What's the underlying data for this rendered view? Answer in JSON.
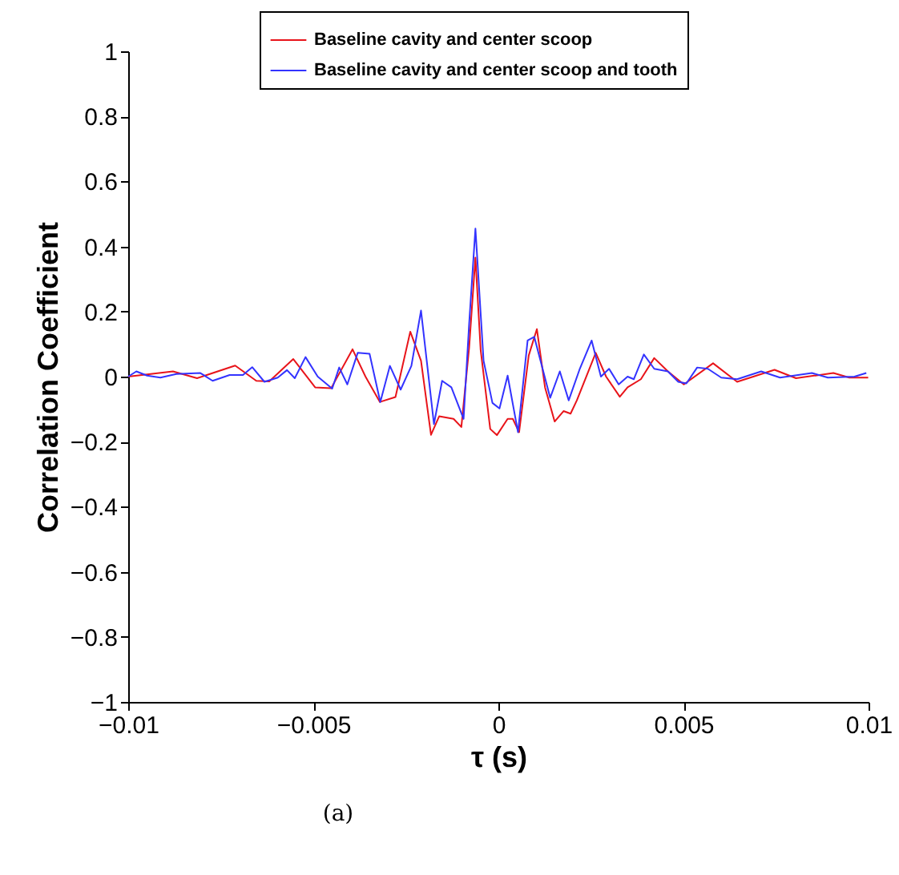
{
  "chart_data": {
    "type": "line",
    "xlabel": "τ (s)",
    "ylabel": "Correlation Coefficient",
    "annotations": [
      "(a)"
    ],
    "xlim": [
      -0.01,
      0.01
    ],
    "xticks": [
      -0.01,
      -0.005,
      0,
      0.005,
      0.01
    ],
    "ylim": [
      -1,
      1
    ],
    "yticks": [
      -1,
      -0.8,
      -0.6,
      -0.4,
      -0.2,
      0,
      0.2,
      0.4,
      0.6,
      0.8,
      1
    ],
    "grid": false,
    "legend": "top right",
    "marker": "none",
    "line_style": "solid",
    "series": [
      {
        "name": "Baseline cavity and center scoop",
        "color": "#e8141a",
        "x": [
          -0.01,
          -0.00879,
          -0.00814,
          -0.00711,
          -0.00654,
          -0.00619,
          -0.00554,
          -0.00495,
          -0.00452,
          -0.00394,
          -0.00359,
          -0.0032,
          -0.00278,
          -0.00238,
          -0.00209,
          -0.00182,
          -0.0016,
          -0.00121,
          -0.001,
          -0.00079,
          -0.00062,
          -0.00048,
          -0.00022,
          -4e-05,
          0.00025,
          0.00039,
          0.00056,
          0.00082,
          0.00104,
          0.00126,
          0.00152,
          0.00176,
          0.00195,
          0.00212,
          0.00263,
          0.00291,
          0.00328,
          0.00349,
          0.00385,
          0.00421,
          0.00458,
          0.00501,
          0.0058,
          0.00645,
          0.00746,
          0.00804,
          0.00905,
          0.00948,
          0.00999
        ],
        "values": [
          0,
          0.016,
          -0.005,
          0.034,
          -0.013,
          -0.015,
          0.054,
          -0.033,
          -0.036,
          0.084,
          0,
          -0.078,
          -0.063,
          0.138,
          0.049,
          -0.179,
          -0.122,
          -0.13,
          -0.155,
          0.089,
          0.366,
          0.083,
          -0.161,
          -0.18,
          -0.13,
          -0.13,
          -0.171,
          0.065,
          0.146,
          -0.033,
          -0.138,
          -0.106,
          -0.114,
          -0.073,
          0.073,
          0,
          -0.062,
          -0.033,
          -0.008,
          0.057,
          0.016,
          -0.024,
          0.041,
          -0.016,
          0.021,
          -0.005,
          0.011,
          -0.003,
          -0.003
        ]
      },
      {
        "name": "Baseline cavity and center scoop and tooth",
        "color": "#3333ff",
        "x": [
          -0.01,
          -0.00978,
          -0.00949,
          -0.00913,
          -0.0087,
          -0.00805,
          -0.00772,
          -0.00726,
          -0.0069,
          -0.00665,
          -0.00632,
          -0.00596,
          -0.00571,
          -0.0055,
          -0.00521,
          -0.00488,
          -0.00449,
          -0.0043,
          -0.00408,
          -0.0038,
          -0.00348,
          -0.00319,
          -0.00293,
          -0.00264,
          -0.00235,
          -0.00209,
          -0.00174,
          -0.00152,
          -0.00127,
          -0.00094,
          -0.00079,
          -0.00062,
          -0.0004,
          -0.00016,
          3e-05,
          0.00025,
          0.00053,
          0.00079,
          0.00097,
          0.0014,
          0.00166,
          0.0019,
          0.00219,
          0.00252,
          0.00277,
          0.00299,
          0.00325,
          0.00349,
          0.00366,
          0.00393,
          0.00421,
          0.00458,
          0.00486,
          0.00508,
          0.00537,
          0.00566,
          0.00602,
          0.00645,
          0.0071,
          0.00761,
          0.00847,
          0.0089,
          0.00962,
          0.00994
        ],
        "values": [
          0,
          0.016,
          0.003,
          -0.003,
          0.008,
          0.011,
          -0.013,
          0.005,
          0.005,
          0.029,
          -0.016,
          -0.003,
          0.02,
          -0.005,
          0.06,
          0,
          -0.037,
          0.028,
          -0.024,
          0.073,
          0.07,
          -0.078,
          0.033,
          -0.04,
          0.033,
          0.203,
          -0.146,
          -0.013,
          -0.033,
          -0.13,
          0.162,
          0.455,
          0.049,
          -0.081,
          -0.098,
          0.003,
          -0.171,
          0.111,
          0.122,
          -0.065,
          0.016,
          -0.073,
          0.021,
          0.111,
          0,
          0.024,
          -0.024,
          0,
          -0.008,
          0.068,
          0.024,
          0.016,
          -0.016,
          -0.021,
          0.028,
          0.024,
          -0.003,
          -0.008,
          0.016,
          -0.003,
          0.011,
          -0.003,
          0,
          0.011
        ]
      }
    ]
  }
}
